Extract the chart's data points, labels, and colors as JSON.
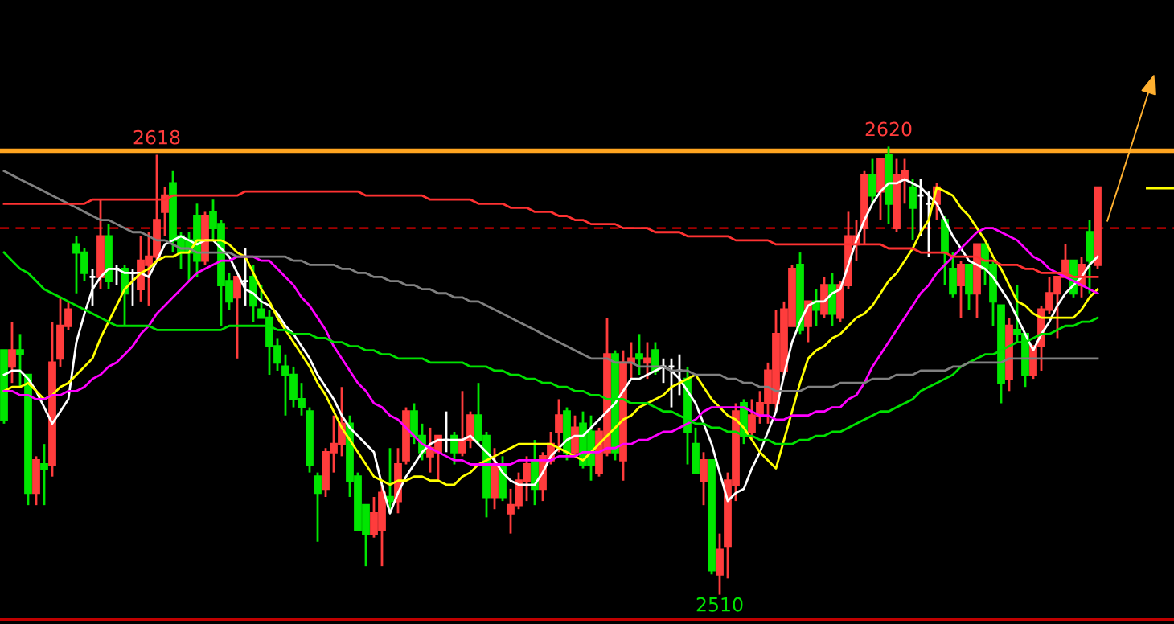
{
  "chart_data": {
    "type": "candlestick",
    "categories": [
      null,
      null,
      null,
      null,
      null,
      null,
      null,
      null,
      null,
      null,
      null,
      null,
      null,
      null,
      null,
      null,
      null,
      null,
      null,
      null,
      null,
      null,
      null,
      null,
      null,
      null,
      null,
      null,
      null,
      null,
      null,
      null,
      null,
      null,
      null,
      null,
      null,
      null,
      null,
      null,
      null,
      null,
      null,
      null,
      null,
      null,
      null,
      null,
      null,
      null,
      null,
      null,
      null,
      null,
      null,
      null,
      null,
      null,
      null,
      null,
      null,
      null,
      null,
      null,
      null,
      null,
      null,
      null,
      null,
      null,
      null,
      null,
      null,
      null,
      null,
      null,
      null,
      null,
      null,
      null,
      null,
      null,
      null,
      null,
      null,
      null,
      null,
      null,
      null,
      null,
      null,
      null,
      null,
      null,
      null,
      null,
      null,
      null,
      null,
      null,
      null,
      null,
      null,
      null,
      null,
      null,
      null,
      null,
      null,
      null,
      null,
      null,
      null,
      null,
      null,
      null,
      null,
      null,
      null,
      null,
      null,
      null,
      null,
      null,
      null,
      null,
      null,
      null,
      null,
      null,
      null,
      null,
      null,
      null,
      null,
      null,
      null
    ],
    "ohlc": [
      [
        2570,
        2570,
        2552,
        2553
      ],
      [
        2566,
        2577,
        2562,
        2570
      ],
      [
        2570,
        2574,
        2561,
        2569
      ],
      [
        2564,
        2564,
        2532,
        2535
      ],
      [
        2535,
        2544,
        2532,
        2543
      ],
      [
        2542,
        2547,
        2532,
        2541
      ],
      [
        2542,
        2577,
        2539,
        2567
      ],
      [
        2568,
        2583,
        2566,
        2576
      ],
      [
        2576,
        2582,
        2575,
        2580
      ],
      [
        2596,
        2598,
        2584,
        2594
      ],
      [
        2594,
        2595,
        2587,
        2589
      ],
      [
        2588,
        2590,
        2581,
        2588
      ],
      [
        2588,
        2607,
        2585,
        2598
      ],
      [
        2598,
        2601,
        2585,
        2587
      ],
      [
        2590,
        2591,
        2586,
        2590
      ],
      [
        2590,
        2591,
        2576,
        2584
      ],
      [
        2589,
        2590,
        2581,
        2589
      ],
      [
        2585,
        2598,
        2582,
        2592
      ],
      [
        2591,
        2599,
        2581,
        2593
      ],
      [
        2593,
        2618,
        2592,
        2602
      ],
      [
        2604,
        2610,
        2598,
        2608
      ],
      [
        2611,
        2614,
        2594,
        2597
      ],
      [
        2598,
        2599,
        2590,
        2594
      ],
      [
        2597,
        2599,
        2587,
        2594
      ],
      [
        2603,
        2606,
        2588,
        2592
      ],
      [
        2592,
        2604,
        2591,
        2603
      ],
      [
        2604,
        2607,
        2597,
        2600
      ],
      [
        2601,
        2602,
        2576,
        2586
      ],
      [
        2587,
        2589,
        2580,
        2582
      ],
      [
        2583,
        2588,
        2568,
        2588
      ],
      [
        2587,
        2595,
        2581,
        2587
      ],
      [
        2588,
        2591,
        2577,
        2581
      ],
      [
        2580,
        2586,
        2578,
        2578
      ],
      [
        2578,
        2580,
        2564,
        2571
      ],
      [
        2571,
        2573,
        2565,
        2567
      ],
      [
        2566,
        2569,
        2554,
        2564
      ],
      [
        2564,
        2566,
        2556,
        2558
      ],
      [
        2558,
        2562,
        2554,
        2556
      ],
      [
        2555,
        2556,
        2540,
        2542
      ],
      [
        2539,
        2540,
        2523,
        2535
      ],
      [
        2536,
        2546,
        2534,
        2545
      ],
      [
        2545,
        2554,
        2540,
        2547
      ],
      [
        2547,
        2561,
        2544,
        2552
      ],
      [
        2552,
        2554,
        2534,
        2538
      ],
      [
        2539,
        2540,
        2526,
        2526
      ],
      [
        2532,
        2532,
        2517,
        2525
      ],
      [
        2525,
        2534,
        2524,
        2530
      ],
      [
        2526,
        2537,
        2517,
        2535
      ],
      [
        2534,
        2546,
        2530,
        2533
      ],
      [
        2533,
        2546,
        2530,
        2542
      ],
      [
        2543,
        2556,
        2542,
        2555
      ],
      [
        2555,
        2557,
        2547,
        2549
      ],
      [
        2549,
        2552,
        2543,
        2545
      ],
      [
        2544,
        2551,
        2540,
        2546
      ],
      [
        2545,
        2549,
        2538,
        2549
      ],
      [
        2548,
        2555,
        2545,
        2548
      ],
      [
        2549,
        2550,
        2542,
        2545
      ],
      [
        2545,
        2560,
        2544,
        2548
      ],
      [
        2548,
        2555,
        2546,
        2554
      ],
      [
        2554,
        2562,
        2547,
        2548
      ],
      [
        2549,
        2550,
        2529,
        2534
      ],
      [
        2534,
        2546,
        2531,
        2542
      ],
      [
        2542,
        2544,
        2533,
        2534
      ],
      [
        2530,
        2536,
        2525,
        2532
      ],
      [
        2532,
        2540,
        2531,
        2538
      ],
      [
        2538,
        2544,
        2533,
        2542
      ],
      [
        2543,
        2548,
        2532,
        2536
      ],
      [
        2536,
        2545,
        2533,
        2544
      ],
      [
        2543,
        2550,
        2542,
        2547
      ],
      [
        2550,
        2558,
        2545,
        2554
      ],
      [
        2555,
        2556,
        2543,
        2545
      ],
      [
        2545,
        2554,
        2544,
        2551
      ],
      [
        2552,
        2555,
        2541,
        2542
      ],
      [
        2550,
        2554,
        2538,
        2542
      ],
      [
        2540,
        2551,
        2539,
        2550
      ],
      [
        2545,
        2578,
        2544,
        2569
      ],
      [
        2569,
        2570,
        2543,
        2545
      ],
      [
        2543,
        2570,
        2538,
        2567
      ],
      [
        2567,
        2572,
        2563,
        2568
      ],
      [
        2569,
        2574,
        2564,
        2568
      ],
      [
        2567,
        2572,
        2563,
        2568
      ],
      [
        2570,
        2572,
        2564,
        2565
      ],
      [
        2566,
        2568,
        2562,
        2566
      ],
      [
        2566,
        2568,
        2556,
        2566
      ],
      [
        2565,
        2569,
        2559,
        2565
      ],
      [
        2563,
        2566,
        2542,
        2550
      ],
      [
        2547,
        2551,
        2540,
        2540
      ],
      [
        2538,
        2545,
        2532,
        2543
      ],
      [
        2543,
        2543,
        2515,
        2516
      ],
      [
        2515,
        2525,
        2510,
        2521
      ],
      [
        2522,
        2540,
        2514,
        2538
      ],
      [
        2537,
        2557,
        2533,
        2555
      ],
      [
        2557,
        2558,
        2547,
        2549
      ],
      [
        2550,
        2558,
        2548,
        2554
      ],
      [
        2554,
        2560,
        2552,
        2557
      ],
      [
        2557,
        2567,
        2552,
        2565
      ],
      [
        2557,
        2580,
        2555,
        2574
      ],
      [
        2565,
        2582,
        2564,
        2580
      ],
      [
        2576,
        2591,
        2576,
        2590
      ],
      [
        2591,
        2594,
        2574,
        2575
      ],
      [
        2576,
        2582,
        2572,
        2582
      ],
      [
        2582,
        2585,
        2576,
        2580
      ],
      [
        2579,
        2588,
        2578,
        2586
      ],
      [
        2586,
        2589,
        2576,
        2579
      ],
      [
        2578,
        2587,
        2577,
        2586
      ],
      [
        2586,
        2604,
        2585,
        2598
      ],
      [
        2596,
        2602,
        2592,
        2598
      ],
      [
        2600,
        2614,
        2596,
        2613
      ],
      [
        2613,
        2617,
        2606,
        2608
      ],
      [
        2609,
        2617,
        2602,
        2617
      ],
      [
        2618,
        2620,
        2601,
        2606
      ],
      [
        2600,
        2617,
        2599,
        2613
      ],
      [
        2612,
        2617,
        2606,
        2614
      ],
      [
        2610,
        2612,
        2597,
        2605
      ],
      [
        2608,
        2612,
        2598,
        2608
      ],
      [
        2606,
        2609,
        2593,
        2606
      ],
      [
        2606,
        2611,
        2602,
        2610
      ],
      [
        2602,
        2603,
        2586,
        2594
      ],
      [
        2590,
        2594,
        2583,
        2584
      ],
      [
        2586,
        2592,
        2578,
        2591
      ],
      [
        2591,
        2591,
        2580,
        2584
      ],
      [
        2584,
        2596,
        2578,
        2596
      ],
      [
        2596,
        2596,
        2586,
        2590
      ],
      [
        2591,
        2592,
        2576,
        2582
      ],
      [
        2581,
        2581,
        2557,
        2562
      ],
      [
        2563,
        2578,
        2560,
        2576
      ],
      [
        2575,
        2586,
        2572,
        2574
      ],
      [
        2574,
        2574,
        2561,
        2564
      ],
      [
        2564,
        2571,
        2563,
        2571
      ],
      [
        2571,
        2581,
        2565,
        2580
      ],
      [
        2580,
        2588,
        2579,
        2584
      ],
      [
        2584,
        2588,
        2573,
        2588
      ],
      [
        2588,
        2596,
        2588,
        2592
      ],
      [
        2592,
        2592,
        2583,
        2584
      ],
      [
        2586,
        2593,
        2583,
        2591
      ],
      [
        2599,
        2602,
        2584,
        2592
      ],
      [
        2591,
        2610,
        2590,
        2610
      ]
    ],
    "colors": [
      "#00e600",
      "#ff3c3c",
      "#00e600",
      "#00e600",
      "#ff3c3c",
      "#00e600",
      "#ff3c3c",
      "#ff3c3c",
      "#ff3c3c",
      "#00e600",
      "#00e600",
      "#ffffff",
      "#ff3c3c",
      "#00e600",
      "#ffffff",
      "#00e600",
      "#ffffff",
      "#ff3c3c",
      "#ff3c3c",
      "#ff3c3c",
      "#ff3c3c",
      "#00e600",
      "#00e600",
      "#00e600",
      "#00e600",
      "#ff3c3c",
      "#00e600",
      "#00e600",
      "#00e600",
      "#ff3c3c",
      "#ffffff",
      "#00e600",
      "#00e600",
      "#00e600",
      "#00e600",
      "#00e600",
      "#00e600",
      "#00e600",
      "#00e600",
      "#00e600",
      "#ff3c3c",
      "#ff3c3c",
      "#ff3c3c",
      "#00e600",
      "#00e600",
      "#00e600",
      "#ff3c3c",
      "#ff3c3c",
      "#00e600",
      "#ff3c3c",
      "#ff3c3c",
      "#00e600",
      "#00e600",
      "#ff3c3c",
      "#ff3c3c",
      "#ffffff",
      "#00e600",
      "#ff3c3c",
      "#ff3c3c",
      "#00e600",
      "#00e600",
      "#ff3c3c",
      "#00e600",
      "#ff3c3c",
      "#ff3c3c",
      "#ff3c3c",
      "#00e600",
      "#ff3c3c",
      "#ff3c3c",
      "#ff3c3c",
      "#00e600",
      "#ff3c3c",
      "#00e600",
      "#00e600",
      "#ff3c3c",
      "#ff3c3c",
      "#00e600",
      "#ff3c3c",
      "#ff3c3c",
      "#00e600",
      "#ff3c3c",
      "#00e600",
      "#ffffff",
      "#ffffff",
      "#ffffff",
      "#00e600",
      "#00e600",
      "#ff3c3c",
      "#00e600",
      "#ff3c3c",
      "#ff3c3c",
      "#ff3c3c",
      "#00e600",
      "#ff3c3c",
      "#ff3c3c",
      "#ff3c3c",
      "#ff3c3c",
      "#ff3c3c",
      "#ff3c3c",
      "#00e600",
      "#ff3c3c",
      "#00e600",
      "#ff3c3c",
      "#00e600",
      "#ff3c3c",
      "#ff3c3c",
      "#ff3c3c",
      "#ff3c3c",
      "#00e600",
      "#ff3c3c",
      "#00e600",
      "#ff3c3c",
      "#ff3c3c",
      "#00e600",
      "#ffffff",
      "#ffffff",
      "#ff3c3c",
      "#00e600",
      "#00e600",
      "#ff3c3c",
      "#00e600",
      "#ff3c3c",
      "#00e600",
      "#00e600",
      "#00e600",
      "#ff3c3c",
      "#00e600",
      "#00e600",
      "#ff3c3c",
      "#ff3c3c",
      "#ff3c3c",
      "#ff3c3c",
      "#ff3c3c",
      "#00e600",
      "#ff3c3c",
      "#00e600",
      "#ff3c3c"
    ],
    "series": [
      {
        "type": "line",
        "color": "#ffffff",
        "values": [
          2564,
          2565,
          2565,
          2563,
          2560,
          2556,
          2552,
          2555,
          2558,
          2572,
          2579,
          2585,
          2588,
          2590,
          2590,
          2589,
          2589,
          2589,
          2588,
          2592,
          2596,
          2597,
          2598,
          2597,
          2596,
          2597,
          2597,
          2595,
          2593,
          2589,
          2585,
          2584,
          2582,
          2581,
          2579,
          2576,
          2574,
          2571,
          2568,
          2564,
          2561,
          2558,
          2554,
          2551,
          2549,
          2547,
          2545,
          2537,
          2530,
          2535,
          2539,
          2542,
          2545,
          2547,
          2548,
          2548,
          2548,
          2548,
          2549,
          2547,
          2545,
          2543,
          2540,
          2538,
          2537,
          2537,
          2537,
          2540,
          2544,
          2546,
          2548,
          2549,
          2549,
          2551,
          2553,
          2555,
          2557,
          2560,
          2563,
          2563,
          2564,
          2565,
          2566,
          2565,
          2563,
          2560,
          2557,
          2552,
          2547,
          2540,
          2533,
          2535,
          2536,
          2541,
          2545,
          2550,
          2555,
          2564,
          2572,
          2577,
          2581,
          2582,
          2582,
          2584,
          2585,
          2591,
          2597,
          2602,
          2606,
          2609,
          2611,
          2611,
          2612,
          2611,
          2610,
          2608,
          2606,
          2602,
          2598,
          2595,
          2592,
          2591,
          2590,
          2588,
          2585,
          2582,
          2578,
          2574,
          2570,
          2574,
          2577,
          2581,
          2584,
          2586,
          2588,
          2591,
          2593
        ]
      },
      {
        "type": "line",
        "color": "#ffff00",
        "values": [
          2560,
          2561,
          2561,
          2562,
          2560,
          2558,
          2559,
          2561,
          2562,
          2564,
          2566,
          2568,
          2573,
          2577,
          2581,
          2585,
          2587,
          2589,
          2590,
          2592,
          2593,
          2593,
          2594,
          2594,
          2597,
          2597,
          2597,
          2597,
          2596,
          2594,
          2593,
          2589,
          2585,
          2582,
          2578,
          2575,
          2572,
          2569,
          2566,
          2562,
          2559,
          2555,
          2551,
          2548,
          2545,
          2542,
          2539,
          2538,
          2537,
          2538,
          2538,
          2539,
          2539,
          2538,
          2538,
          2537,
          2537,
          2539,
          2540,
          2542,
          2543,
          2544,
          2545,
          2546,
          2547,
          2547,
          2547,
          2547,
          2547,
          2546,
          2545,
          2544,
          2543,
          2545,
          2547,
          2549,
          2551,
          2553,
          2554,
          2556,
          2557,
          2558,
          2559,
          2561,
          2562,
          2563,
          2564,
          2561,
          2558,
          2556,
          2554,
          2553,
          2551,
          2548,
          2545,
          2543,
          2541,
          2548,
          2555,
          2562,
          2568,
          2570,
          2571,
          2573,
          2574,
          2576,
          2578,
          2579,
          2581,
          2584,
          2587,
          2589,
          2592,
          2595,
          2599,
          2602,
          2610,
          2609,
          2608,
          2605,
          2603,
          2600,
          2597,
          2593,
          2590,
          2586,
          2582,
          2581,
          2579,
          2578,
          2578,
          2578,
          2578,
          2578,
          2580,
          2583,
          2585
        ]
      },
      {
        "type": "line",
        "color": "#ff00ff",
        "values": [
          2560,
          2560,
          2559,
          2559,
          2558,
          2558,
          2559,
          2559,
          2560,
          2560,
          2561,
          2563,
          2564,
          2566,
          2567,
          2569,
          2571,
          2574,
          2576,
          2579,
          2581,
          2583,
          2585,
          2587,
          2589,
          2590,
          2591,
          2592,
          2592,
          2593,
          2593,
          2593,
          2592,
          2592,
          2590,
          2588,
          2586,
          2583,
          2581,
          2578,
          2575,
          2571,
          2568,
          2565,
          2562,
          2560,
          2557,
          2556,
          2554,
          2553,
          2551,
          2549,
          2547,
          2546,
          2545,
          2544,
          2543,
          2543,
          2542,
          2542,
          2542,
          2542,
          2542,
          2542,
          2543,
          2543,
          2543,
          2543,
          2543,
          2544,
          2544,
          2544,
          2545,
          2545,
          2545,
          2546,
          2546,
          2547,
          2547,
          2548,
          2548,
          2549,
          2550,
          2550,
          2551,
          2552,
          2553,
          2555,
          2556,
          2556,
          2556,
          2556,
          2556,
          2555,
          2554,
          2554,
          2553,
          2553,
          2554,
          2554,
          2554,
          2555,
          2555,
          2556,
          2556,
          2558,
          2559,
          2562,
          2566,
          2569,
          2572,
          2575,
          2578,
          2581,
          2584,
          2586,
          2589,
          2591,
          2593,
          2595,
          2597,
          2599,
          2600,
          2600,
          2599,
          2598,
          2597,
          2595,
          2593,
          2592,
          2590,
          2589,
          2588,
          2587,
          2586,
          2585,
          2584
        ]
      },
      {
        "type": "line",
        "color": "#00e000",
        "values": [
          2594,
          2592,
          2590,
          2589,
          2587,
          2585,
          2584,
          2583,
          2582,
          2581,
          2580,
          2579,
          2578,
          2577,
          2576,
          2576,
          2576,
          2576,
          2576,
          2575,
          2575,
          2575,
          2575,
          2575,
          2575,
          2575,
          2575,
          2575,
          2576,
          2576,
          2576,
          2576,
          2576,
          2576,
          2575,
          2575,
          2574,
          2574,
          2574,
          2573,
          2573,
          2572,
          2572,
          2571,
          2571,
          2570,
          2570,
          2569,
          2569,
          2568,
          2568,
          2568,
          2568,
          2567,
          2567,
          2567,
          2567,
          2567,
          2566,
          2566,
          2566,
          2565,
          2565,
          2564,
          2564,
          2563,
          2563,
          2562,
          2562,
          2561,
          2561,
          2560,
          2560,
          2559,
          2559,
          2558,
          2558,
          2558,
          2557,
          2557,
          2557,
          2556,
          2555,
          2555,
          2554,
          2553,
          2552,
          2552,
          2551,
          2551,
          2550,
          2550,
          2549,
          2549,
          2548,
          2548,
          2547,
          2547,
          2547,
          2548,
          2548,
          2549,
          2549,
          2550,
          2550,
          2551,
          2552,
          2553,
          2554,
          2555,
          2555,
          2556,
          2557,
          2558,
          2560,
          2561,
          2562,
          2563,
          2564,
          2566,
          2567,
          2568,
          2569,
          2569,
          2570,
          2571,
          2572,
          2572,
          2573,
          2574,
          2574,
          2575,
          2576,
          2576,
          2577,
          2577,
          2578
        ]
      },
      {
        "type": "line",
        "color": "#808080",
        "values": [
          2614,
          2613,
          2612,
          2611,
          2610,
          2609,
          2608,
          2607,
          2606,
          2605,
          2604,
          2603,
          2602,
          2602,
          2601,
          2600,
          2599,
          2599,
          2598,
          2597,
          2597,
          2596,
          2595,
          2595,
          2594,
          2594,
          2594,
          2594,
          2594,
          2593,
          2593,
          2593,
          2593,
          2593,
          2593,
          2593,
          2592,
          2592,
          2591,
          2591,
          2591,
          2591,
          2590,
          2590,
          2589,
          2589,
          2588,
          2588,
          2587,
          2587,
          2586,
          2586,
          2585,
          2585,
          2584,
          2584,
          2583,
          2583,
          2582,
          2582,
          2581,
          2580,
          2579,
          2578,
          2577,
          2576,
          2575,
          2574,
          2573,
          2572,
          2571,
          2570,
          2569,
          2568,
          2568,
          2568,
          2567,
          2567,
          2567,
          2566,
          2566,
          2566,
          2566,
          2565,
          2565,
          2565,
          2564,
          2564,
          2564,
          2564,
          2563,
          2563,
          2562,
          2562,
          2561,
          2561,
          2560,
          2560,
          2560,
          2560,
          2561,
          2561,
          2561,
          2561,
          2562,
          2562,
          2562,
          2562,
          2563,
          2563,
          2563,
          2564,
          2564,
          2564,
          2565,
          2565,
          2565,
          2565,
          2566,
          2566,
          2567,
          2567,
          2567,
          2567,
          2567,
          2568,
          2568,
          2568,
          2568,
          2568,
          2568,
          2568,
          2568,
          2568,
          2568,
          2568,
          2568
        ]
      },
      {
        "type": "line",
        "color": "#ff3232",
        "values": [
          2606,
          2606,
          2606,
          2606,
          2606,
          2606,
          2606,
          2606,
          2606,
          2606,
          2606,
          2607,
          2607,
          2607,
          2607,
          2607,
          2607,
          2607,
          2607,
          2607,
          2607,
          2608,
          2608,
          2608,
          2608,
          2608,
          2608,
          2608,
          2608,
          2608,
          2609,
          2609,
          2609,
          2609,
          2609,
          2609,
          2609,
          2609,
          2609,
          2609,
          2609,
          2609,
          2609,
          2609,
          2609,
          2608,
          2608,
          2608,
          2608,
          2608,
          2608,
          2608,
          2608,
          2607,
          2607,
          2607,
          2607,
          2607,
          2607,
          2606,
          2606,
          2606,
          2606,
          2605,
          2605,
          2605,
          2604,
          2604,
          2604,
          2603,
          2603,
          2602,
          2602,
          2601,
          2601,
          2601,
          2601,
          2600,
          2600,
          2600,
          2600,
          2599,
          2599,
          2599,
          2599,
          2598,
          2598,
          2598,
          2598,
          2598,
          2598,
          2597,
          2597,
          2597,
          2597,
          2597,
          2596,
          2596,
          2596,
          2596,
          2596,
          2596,
          2596,
          2596,
          2596,
          2596,
          2596,
          2596,
          2596,
          2596,
          2595,
          2595,
          2595,
          2595,
          2594,
          2594,
          2594,
          2594,
          2593,
          2593,
          2593,
          2593,
          2592,
          2592,
          2591,
          2591,
          2591,
          2590,
          2590,
          2589,
          2589,
          2589,
          2589,
          2588,
          2588,
          2588,
          2588
        ]
      }
    ],
    "ref_lines": [
      {
        "axis": "y",
        "value": 2600,
        "color": "#a00000",
        "line_style": "dashed"
      },
      {
        "axis": "y",
        "value": 2619,
        "color": "#ffa520",
        "line_style": "solid"
      }
    ],
    "ylim": [
      2504,
      2656
    ],
    "annotations": [
      {
        "text": "2618",
        "y": 2618
      },
      {
        "text": "2620",
        "y": 2620
      },
      {
        "text": "2510",
        "y": 2510
      }
    ]
  }
}
